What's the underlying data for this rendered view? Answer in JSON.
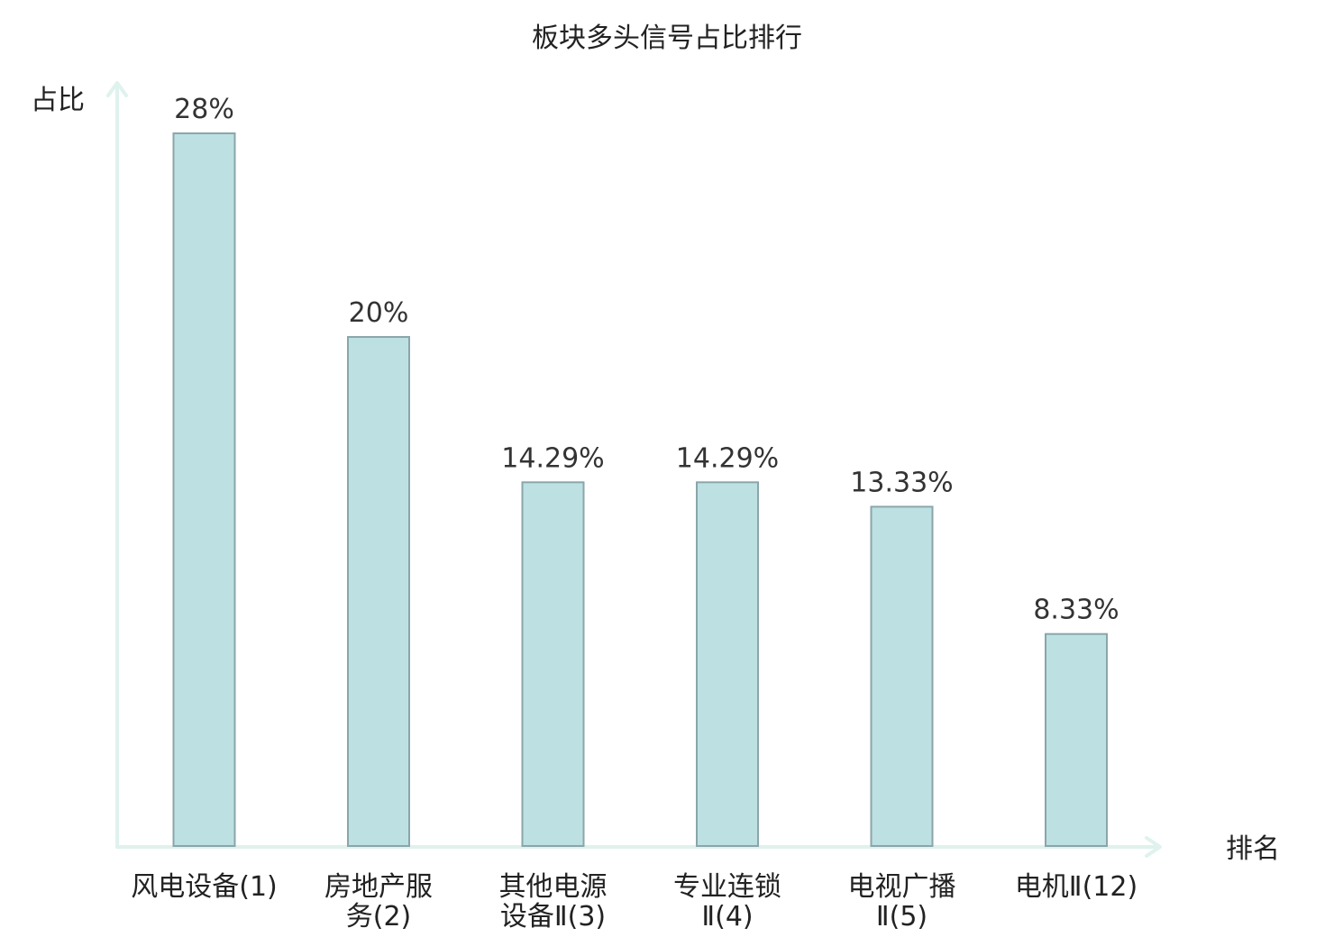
{
  "chart_data": {
    "type": "bar",
    "title": "板块多头信号占比排行",
    "ylabel": "占比",
    "xlabel": "排名",
    "categories": [
      {
        "lines": [
          "风电设备(1)"
        ],
        "highlight": false
      },
      {
        "lines": [
          "房地产服",
          "务(2)"
        ],
        "highlight": false
      },
      {
        "lines": [
          "其他电源",
          "设备Ⅱ(3)"
        ],
        "highlight": false
      },
      {
        "lines": [
          "专业连锁",
          "Ⅱ(4)"
        ],
        "highlight": false
      },
      {
        "lines": [
          "电视广播",
          "Ⅱ(5)"
        ],
        "highlight": false
      },
      {
        "lines": [
          "电机Ⅱ(12)"
        ],
        "highlight": true
      }
    ],
    "values": [
      28,
      20,
      14.29,
      14.29,
      13.33,
      8.33
    ],
    "value_labels": [
      "28%",
      "20%",
      "14.29%",
      "14.29%",
      "13.33%",
      "8.33%"
    ],
    "ylim": [
      0,
      28
    ],
    "grid": false,
    "legend": "none",
    "colors": {
      "bar_fill": "#bde0e3",
      "bar_stroke": "#8aa6aa",
      "axis": "#dff2ee",
      "highlight_text": "#e0231b",
      "text": "#222222"
    }
  }
}
